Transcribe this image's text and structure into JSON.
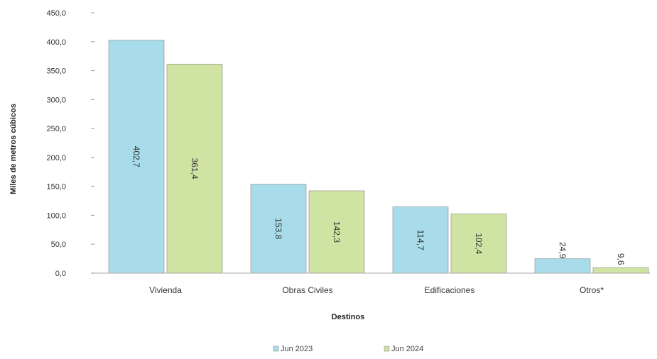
{
  "chart_data": {
    "type": "bar",
    "categories": [
      "Vivienda",
      "Obras Civiles",
      "Edificaciones",
      "Otros*"
    ],
    "series": [
      {
        "name": "Jun 2023",
        "values": [
          402.7,
          153.8,
          114.7,
          24.9
        ],
        "labels": [
          "402,7",
          "153,8",
          "114,7",
          "24,9"
        ],
        "color": "#a8dcea"
      },
      {
        "name": "Jun 2024",
        "values": [
          361.4,
          142.3,
          102.4,
          9.6
        ],
        "labels": [
          "361,4",
          "142,3",
          "102,4",
          "9,6"
        ],
        "color": "#cfe3a2"
      }
    ],
    "xlabel": "Destinos",
    "ylabel": "Miles de metros cúbicos",
    "ylim": [
      0,
      450
    ],
    "yticks": [
      0,
      50,
      100,
      150,
      200,
      250,
      300,
      350,
      400,
      450
    ],
    "ytick_labels": [
      "0,0",
      "50,0",
      "100,0",
      "150,0",
      "200,0",
      "250,0",
      "300,0",
      "350,0",
      "400,0",
      "450,0"
    ],
    "grid": false,
    "legend_position": "bottom-center"
  }
}
